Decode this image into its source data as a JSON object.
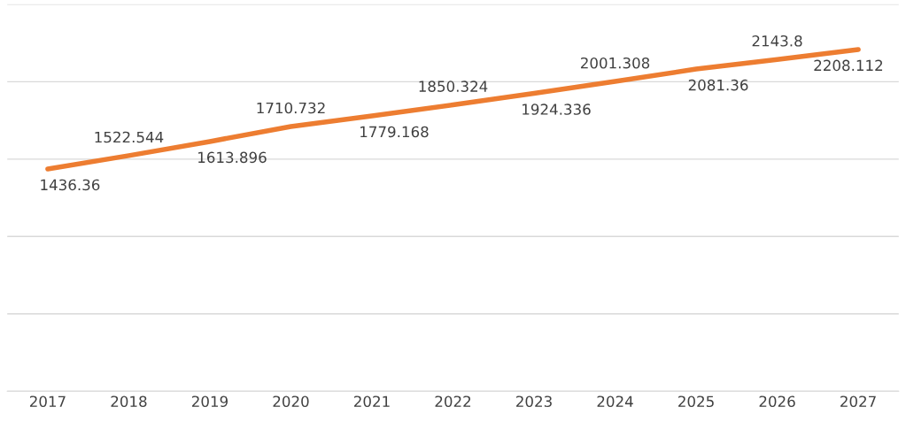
{
  "chart_data": {
    "type": "line",
    "categories": [
      "2017",
      "2018",
      "2019",
      "2020",
      "2021",
      "2022",
      "2023",
      "2024",
      "2025",
      "2026",
      "2027"
    ],
    "series": [
      {
        "color": "#ed7d31",
        "values": [
          1436.36,
          1522.544,
          1613.896,
          1710.732,
          1779.168,
          1850.324,
          1924.336,
          2001.308,
          2081.36,
          2143.8,
          2208.112
        ]
      }
    ],
    "ylim": [
      0,
      2500
    ],
    "yticks": [
      {
        "value": 0,
        "label": null
      },
      {
        "value": 500,
        "label": null
      },
      {
        "value": 1000,
        "label": null
      },
      {
        "value": 1500,
        "label": null
      },
      {
        "value": 2000,
        "label": null
      },
      {
        "value": 2500,
        "label": null
      }
    ],
    "grid": "y",
    "tick_labels": "x",
    "data_labels": true,
    "marker": "none",
    "line_style": "solid"
  }
}
